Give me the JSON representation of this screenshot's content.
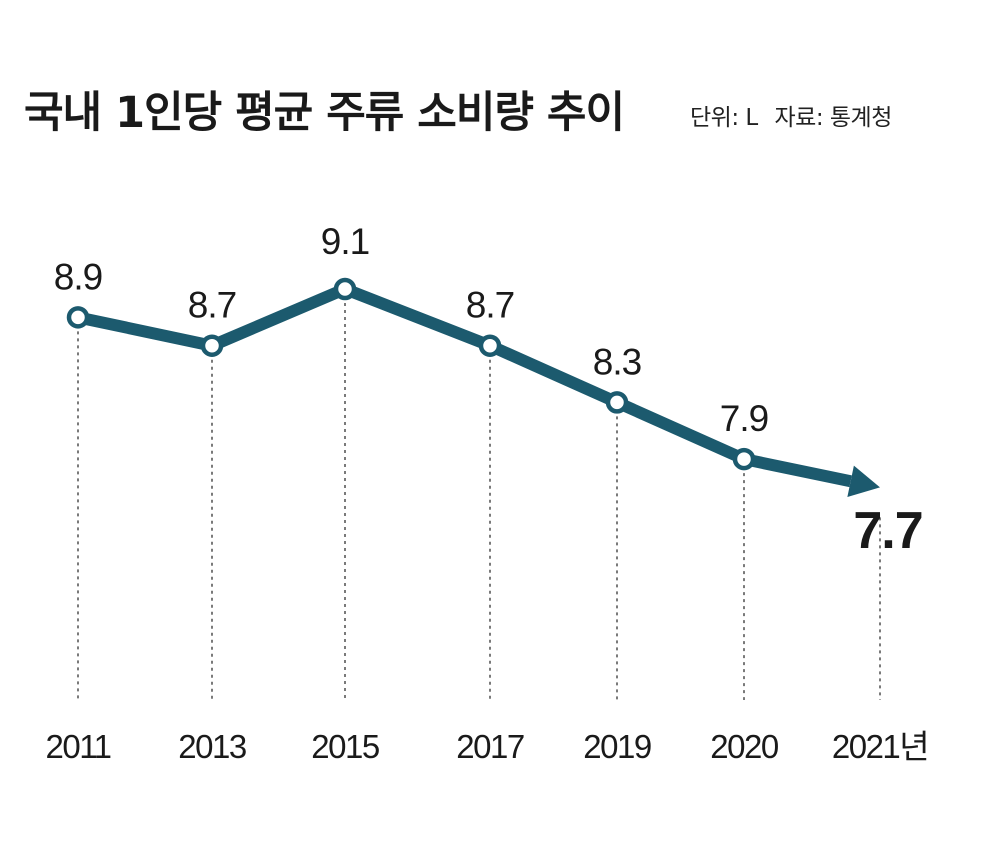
{
  "header": {
    "title": "국내 1인당 평균 주류 소비량 추이",
    "unit": "단위: L",
    "source": "자료: 통계청"
  },
  "chart_data": {
    "type": "line",
    "title": "국내 1인당 평균 주류 소비량 추이",
    "unit": "L",
    "categories": [
      "2011",
      "2013",
      "2015",
      "2017",
      "2019",
      "2020",
      "2021년"
    ],
    "values": [
      8.9,
      8.7,
      9.1,
      8.7,
      8.3,
      7.9,
      7.7
    ],
    "value_labels": [
      "8.9",
      "8.7",
      "9.1",
      "8.7",
      "8.3",
      "7.9",
      "7.7"
    ],
    "xlabel": "",
    "ylabel": "",
    "ylim": [
      6.2,
      9.1
    ],
    "grid": false,
    "line_color": "#1c5a6e",
    "last_point_arrow": true
  }
}
